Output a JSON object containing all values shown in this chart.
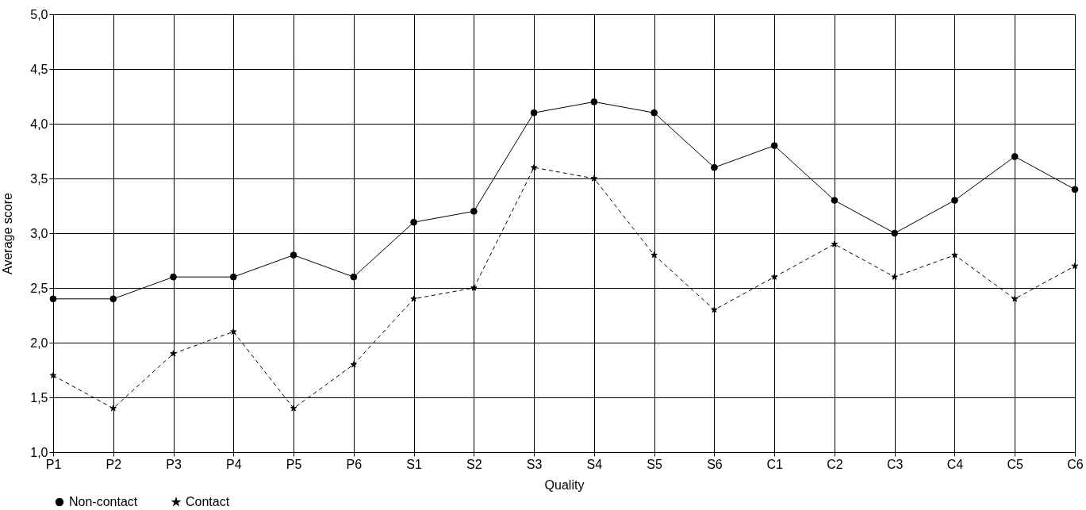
{
  "chart_data": {
    "type": "line",
    "xlabel": "Quality",
    "ylabel": "Average score",
    "categories": [
      "P1",
      "P2",
      "P3",
      "P4",
      "P5",
      "P6",
      "S1",
      "S2",
      "S3",
      "S4",
      "S5",
      "S6",
      "C1",
      "C2",
      "C3",
      "C4",
      "C5",
      "C6"
    ],
    "series": [
      {
        "name": "Non-contact",
        "color": "#000000",
        "marker": "circle",
        "line_style": "solid",
        "values": [
          2.4,
          2.4,
          2.6,
          2.6,
          2.8,
          2.6,
          3.1,
          3.2,
          4.1,
          4.2,
          4.1,
          3.6,
          3.8,
          3.3,
          3.0,
          3.3,
          3.7,
          3.4
        ]
      },
      {
        "name": "Contact",
        "color": "#000000",
        "marker": "star",
        "line_style": "dashed",
        "values": [
          1.7,
          1.4,
          1.9,
          2.1,
          1.4,
          1.8,
          2.4,
          2.5,
          3.6,
          3.5,
          2.8,
          2.3,
          2.6,
          2.9,
          2.6,
          2.8,
          2.4,
          2.7
        ]
      }
    ],
    "ylim": [
      1.0,
      5.0
    ],
    "yticks": [
      {
        "value": 1.0,
        "label": "1,0"
      },
      {
        "value": 1.5,
        "label": "1,5"
      },
      {
        "value": 2.0,
        "label": "2,0"
      },
      {
        "value": 2.5,
        "label": "2,5"
      },
      {
        "value": 3.0,
        "label": "3,0"
      },
      {
        "value": 3.5,
        "label": "3,5"
      },
      {
        "value": 4.0,
        "label": "4,0"
      },
      {
        "value": 4.5,
        "label": "4,5"
      },
      {
        "value": 5.0,
        "label": "5,0"
      }
    ],
    "grid": true,
    "legend": "bottom"
  }
}
